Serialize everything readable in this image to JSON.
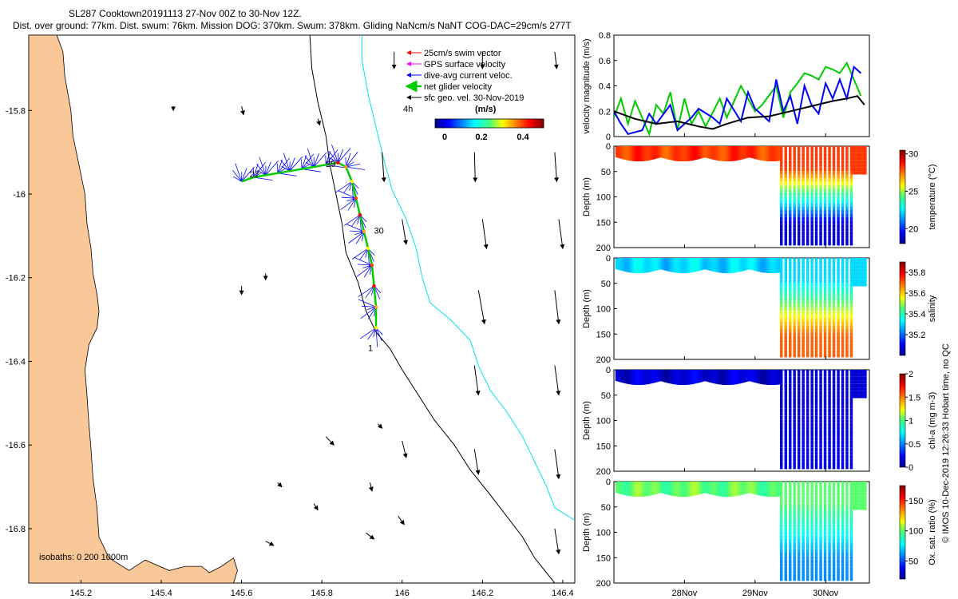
{
  "header": {
    "line1": "SL287 Cooktown20191113 27-Nov 00Z to 30-Nov 12Z.",
    "line2": "Dist. over ground: 77km. Dist. swum: 76km. Mission DOG: 370km. Swum: 378km. Gliding NaNcm/s NaNT COG-DAC=29cm/s 277T"
  },
  "colors": {
    "land": "#f9c798",
    "coast_line": "#000000",
    "isobath_200": "#000000",
    "isobath_1000": "#00e5ee",
    "swim_vector": "#ff0000",
    "gps_surface": "#ff00ff",
    "dive_avg": "#0000ff",
    "net_glider": "#00cc00",
    "sfc_geo": "#000000"
  },
  "chart_data": [
    {
      "type": "map",
      "name": "track-map",
      "xlim": [
        145.07,
        146.43
      ],
      "ylim": [
        -16.93,
        -15.62
      ],
      "xticks": [
        145.2,
        145.4,
        145.6,
        145.8,
        146,
        146.2,
        146.4
      ],
      "xtick_labels": [
        "145.2",
        "145.4",
        "145.6",
        "145.8",
        "146",
        "146.2",
        "146.4"
      ],
      "yticks": [
        -15.8,
        -16,
        -16.2,
        -16.4,
        -16.6,
        -16.8
      ],
      "ytick_labels": [
        "-15.8",
        "-16",
        "-16.2",
        "-16.4",
        "-16.6",
        "-16.8"
      ],
      "legend": [
        {
          "label": "25cm/s swim vector",
          "color": "#ff0000"
        },
        {
          "label": "GPS surface velocity",
          "color": "#ff00ff"
        },
        {
          "label": "dive-avg current veloc.",
          "color": "#0000ff"
        },
        {
          "label": "net glider velocity",
          "color": "#00cc00"
        },
        {
          "label": "sfc geo. vel. 30-Nov-2019",
          "color": "#000000"
        }
      ],
      "colorbar": {
        "label": "(m/s)",
        "ticks": [
          "0",
          "0.2",
          "0.4"
        ],
        "range": [
          0,
          0.5
        ]
      },
      "time_label": "4h",
      "day_labels": [
        {
          "text": "27",
          "lon": 145.62,
          "lat": -15.96
        },
        {
          "text": "29",
          "lon": 145.81,
          "lat": -15.935
        },
        {
          "text": "30",
          "lon": 145.93,
          "lat": -16.095
        },
        {
          "text": "1",
          "lon": 145.915,
          "lat": -16.375
        }
      ],
      "isobath_text": "isobaths: 0   200  1000m",
      "coast": [
        [
          145.07,
          -15.62
        ],
        [
          145.14,
          -15.62
        ],
        [
          145.155,
          -15.66
        ],
        [
          145.16,
          -15.72
        ],
        [
          145.175,
          -15.8
        ],
        [
          145.18,
          -15.86
        ],
        [
          145.195,
          -15.93
        ],
        [
          145.21,
          -16.0
        ],
        [
          145.215,
          -16.07
        ],
        [
          145.225,
          -16.13
        ],
        [
          145.23,
          -16.19
        ],
        [
          145.24,
          -16.24
        ],
        [
          145.245,
          -16.28
        ],
        [
          145.24,
          -16.32
        ],
        [
          145.22,
          -16.36
        ],
        [
          145.21,
          -16.42
        ],
        [
          145.215,
          -16.48
        ],
        [
          145.22,
          -16.55
        ],
        [
          145.225,
          -16.61
        ],
        [
          145.23,
          -16.68
        ],
        [
          145.24,
          -16.75
        ],
        [
          145.245,
          -16.82
        ],
        [
          145.27,
          -16.87
        ],
        [
          145.32,
          -16.9
        ],
        [
          145.36,
          -16.875
        ],
        [
          145.42,
          -16.9
        ],
        [
          145.46,
          -16.89
        ],
        [
          145.5,
          -16.89
        ],
        [
          145.52,
          -16.905
        ],
        [
          145.55,
          -16.89
        ],
        [
          145.58,
          -16.87
        ],
        [
          145.59,
          -16.9
        ],
        [
          145.58,
          -16.93
        ],
        [
          145.07,
          -16.93
        ]
      ],
      "isobath200": [
        [
          145.77,
          -15.62
        ],
        [
          145.775,
          -15.7
        ],
        [
          145.79,
          -15.78
        ],
        [
          145.81,
          -15.86
        ],
        [
          145.82,
          -15.93
        ],
        [
          145.835,
          -16.0
        ],
        [
          145.85,
          -16.07
        ],
        [
          145.86,
          -16.14
        ],
        [
          145.89,
          -16.21
        ],
        [
          145.91,
          -16.28
        ],
        [
          145.935,
          -16.33
        ],
        [
          145.97,
          -16.37
        ],
        [
          146.0,
          -16.42
        ],
        [
          146.04,
          -16.48
        ],
        [
          146.08,
          -16.54
        ],
        [
          146.13,
          -16.6
        ],
        [
          146.17,
          -16.66
        ],
        [
          146.22,
          -16.72
        ],
        [
          146.26,
          -16.77
        ],
        [
          146.3,
          -16.82
        ],
        [
          146.33,
          -16.87
        ],
        [
          146.38,
          -16.93
        ]
      ],
      "isobath1000": [
        [
          145.9,
          -15.62
        ],
        [
          145.9,
          -15.68
        ],
        [
          145.915,
          -15.76
        ],
        [
          145.935,
          -15.84
        ],
        [
          145.955,
          -15.92
        ],
        [
          145.975,
          -15.99
        ],
        [
          146.01,
          -16.06
        ],
        [
          146.035,
          -16.13
        ],
        [
          146.05,
          -16.2
        ],
        [
          146.07,
          -16.26
        ],
        [
          146.12,
          -16.3
        ],
        [
          146.17,
          -16.35
        ],
        [
          146.19,
          -16.41
        ],
        [
          146.22,
          -16.47
        ],
        [
          146.26,
          -16.52
        ],
        [
          146.3,
          -16.58
        ],
        [
          146.33,
          -16.64
        ],
        [
          146.36,
          -16.7
        ],
        [
          146.38,
          -16.75
        ],
        [
          146.43,
          -16.78
        ]
      ],
      "track": [
        [
          145.6,
          -15.97
        ],
        [
          145.63,
          -15.96
        ],
        [
          145.66,
          -15.955
        ],
        [
          145.69,
          -15.95
        ],
        [
          145.72,
          -15.945
        ],
        [
          145.75,
          -15.94
        ],
        [
          145.78,
          -15.935
        ],
        [
          145.81,
          -15.93
        ],
        [
          145.84,
          -15.925
        ],
        [
          145.86,
          -15.935
        ],
        [
          145.875,
          -15.97
        ],
        [
          145.885,
          -16.01
        ],
        [
          145.895,
          -16.05
        ],
        [
          145.905,
          -16.09
        ],
        [
          145.915,
          -16.13
        ],
        [
          145.925,
          -16.17
        ],
        [
          145.93,
          -16.22
        ],
        [
          145.935,
          -16.27
        ],
        [
          145.935,
          -16.32
        ]
      ],
      "geo_arrows": [
        [
          145.98,
          -15.66,
          0,
          -0.04
        ],
        [
          146.2,
          -15.66,
          0,
          -0.04
        ],
        [
          146.38,
          -15.66,
          0.005,
          -0.04
        ],
        [
          145.95,
          -15.9,
          0.005,
          -0.07
        ],
        [
          146.18,
          -15.9,
          0.002,
          -0.07
        ],
        [
          146.38,
          -15.9,
          0.005,
          -0.07
        ],
        [
          146.0,
          -16.06,
          0.01,
          -0.06
        ],
        [
          146.2,
          -16.06,
          0.01,
          -0.07
        ],
        [
          146.39,
          -16.06,
          0.01,
          -0.07
        ],
        [
          146.19,
          -16.23,
          0.015,
          -0.08
        ],
        [
          146.38,
          -16.23,
          0.01,
          -0.08
        ],
        [
          146.18,
          -16.41,
          0.01,
          -0.07
        ],
        [
          146.38,
          -16.41,
          0.01,
          -0.07
        ],
        [
          146.18,
          -16.61,
          0.01,
          -0.06
        ],
        [
          146.38,
          -16.61,
          0.01,
          -0.07
        ],
        [
          146.0,
          -16.59,
          0.01,
          -0.04
        ],
        [
          146.38,
          -16.8,
          0.01,
          -0.06
        ],
        [
          145.69,
          -16.69,
          0.01,
          -0.01
        ],
        [
          145.78,
          -16.74,
          0.01,
          -0.015
        ],
        [
          145.99,
          -16.77,
          0.015,
          -0.02
        ],
        [
          145.91,
          -16.81,
          0.02,
          -0.015
        ],
        [
          145.66,
          -16.83,
          0.02,
          -0.01
        ],
        [
          145.92,
          -16.69,
          0.005,
          -0.02
        ],
        [
          145.94,
          -16.55,
          0.01,
          -0.01
        ],
        [
          145.81,
          -16.58,
          0.02,
          -0.02
        ],
        [
          145.66,
          -16.19,
          0,
          -0.015
        ],
        [
          145.6,
          -16.22,
          0,
          -0.02
        ],
        [
          145.79,
          -15.82,
          0.005,
          -0.015
        ],
        [
          145.6,
          -15.79,
          0.005,
          -0.02
        ],
        [
          145.43,
          -15.79,
          0,
          -0.01
        ]
      ]
    },
    {
      "type": "line",
      "name": "velocity-magnitude",
      "ylabel": "velocity magnitude (m/s)",
      "ylim": [
        0,
        0.8
      ],
      "yticks": [
        0,
        0.2,
        0.4,
        0.6,
        0.8
      ],
      "ytick_labels": [
        "0",
        "0.2",
        "0.4",
        "0.6",
        "0.8"
      ],
      "xlim": [
        27.0,
        30.62
      ],
      "series": [
        {
          "name": "net glider velocity",
          "color": "#00cc00",
          "x": [
            27.0,
            27.1,
            27.2,
            27.3,
            27.5,
            27.6,
            27.7,
            27.8,
            27.9,
            28.0,
            28.1,
            28.2,
            28.3,
            28.5,
            28.6,
            28.8,
            29.0,
            29.1,
            29.3,
            29.4,
            29.5,
            29.6,
            29.7,
            29.8,
            29.9,
            30.0,
            30.1,
            30.2,
            30.3,
            30.4,
            30.5
          ],
          "values": [
            0.15,
            0.3,
            0.1,
            0.28,
            0.02,
            0.25,
            0.18,
            0.35,
            0.05,
            0.3,
            0.1,
            0.2,
            0.08,
            0.3,
            0.15,
            0.4,
            0.2,
            0.25,
            0.4,
            0.15,
            0.35,
            0.42,
            0.5,
            0.48,
            0.45,
            0.55,
            0.53,
            0.5,
            0.58,
            0.45,
            0.32
          ]
        },
        {
          "name": "dive-avg current",
          "color": "#0000ff",
          "x": [
            27.0,
            27.1,
            27.2,
            27.4,
            27.5,
            27.6,
            27.8,
            27.9,
            28.0,
            28.1,
            28.2,
            28.4,
            28.5,
            28.6,
            28.8,
            28.9,
            29.0,
            29.2,
            29.3,
            29.4,
            29.5,
            29.6,
            29.7,
            29.8,
            29.9,
            30.0,
            30.1,
            30.2,
            30.3,
            30.4,
            30.5
          ],
          "values": [
            0.2,
            0.1,
            0.02,
            0.05,
            0.18,
            0.1,
            0.25,
            0.05,
            0.1,
            0.15,
            0.22,
            0.15,
            0.1,
            0.3,
            0.12,
            0.35,
            0.22,
            0.12,
            0.45,
            0.2,
            0.32,
            0.1,
            0.4,
            0.25,
            0.18,
            0.42,
            0.3,
            0.45,
            0.3,
            0.55,
            0.5
          ]
        },
        {
          "name": "sfc geo. vel.",
          "color": "#000000",
          "x": [
            27.0,
            27.3,
            27.6,
            27.9,
            28.2,
            28.4,
            28.6,
            28.9,
            29.2,
            29.5,
            29.8,
            30.1,
            30.3,
            30.45,
            30.55
          ],
          "values": [
            0.2,
            0.14,
            0.1,
            0.12,
            0.08,
            0.06,
            0.1,
            0.15,
            0.16,
            0.2,
            0.24,
            0.28,
            0.3,
            0.32,
            0.25
          ]
        }
      ]
    },
    {
      "type": "heatmap",
      "name": "temperature-section",
      "ylabel": "Depth (m)",
      "ylim": [
        0,
        200
      ],
      "yticks": [
        0,
        50,
        100,
        150,
        200
      ],
      "ytick_labels": [
        "0",
        "50",
        "100",
        "150",
        "200"
      ],
      "colorbar_label": "temperature (°C)",
      "colorbar_ticks": [
        "30",
        "25",
        "20"
      ],
      "colorbar_range": [
        18,
        30.5
      ],
      "surface_value": 28.2,
      "deep_value": 19.0
    },
    {
      "type": "heatmap",
      "name": "salinity-section",
      "ylabel": "Depth (m)",
      "ylim": [
        0,
        200
      ],
      "yticks": [
        0,
        50,
        100,
        150,
        200
      ],
      "ytick_labels": [
        "0",
        "50",
        "100",
        "150",
        "200"
      ],
      "colorbar_label": "salinity",
      "colorbar_ticks": [
        "35.8",
        "35.6",
        "35.4",
        "35.2"
      ],
      "colorbar_range": [
        35.0,
        35.9
      ],
      "surface_value": 35.3,
      "deep_value": 35.7
    },
    {
      "type": "heatmap",
      "name": "chla-section",
      "ylabel": "Depth (m)",
      "ylim": [
        0,
        200
      ],
      "yticks": [
        0,
        50,
        100,
        150,
        200
      ],
      "ytick_labels": [
        "0",
        "50",
        "100",
        "150",
        "200"
      ],
      "colorbar_label": "chl-a (mg m-3)",
      "colorbar_ticks": [
        "2",
        "1.5",
        "1",
        "0.5",
        "0"
      ],
      "colorbar_range": [
        0,
        2
      ],
      "surface_value": 0.15,
      "deep_value": 0.2
    },
    {
      "type": "heatmap",
      "name": "oxygen-section",
      "ylabel": "Depth (m)",
      "ylim": [
        0,
        200
      ],
      "yticks": [
        0,
        50,
        100,
        150,
        200
      ],
      "ytick_labels": [
        "0",
        "50",
        "100",
        "150",
        "200"
      ],
      "colorbar_label": "Ox. sat. ratio (%)",
      "colorbar_ticks": [
        "150",
        "100",
        "50"
      ],
      "colorbar_range": [
        20,
        175
      ],
      "surface_value": 100,
      "deep_value": 60
    }
  ],
  "time_axis": {
    "xlim": [
      27.0,
      30.62
    ],
    "ticks": [
      28,
      29,
      30
    ],
    "tick_labels": [
      "28Nov",
      "29Nov",
      "30Nov"
    ]
  },
  "footer": {
    "credit": "© IMOS 10-Dec-2019 12:26:33 Hobart time, no QC"
  }
}
